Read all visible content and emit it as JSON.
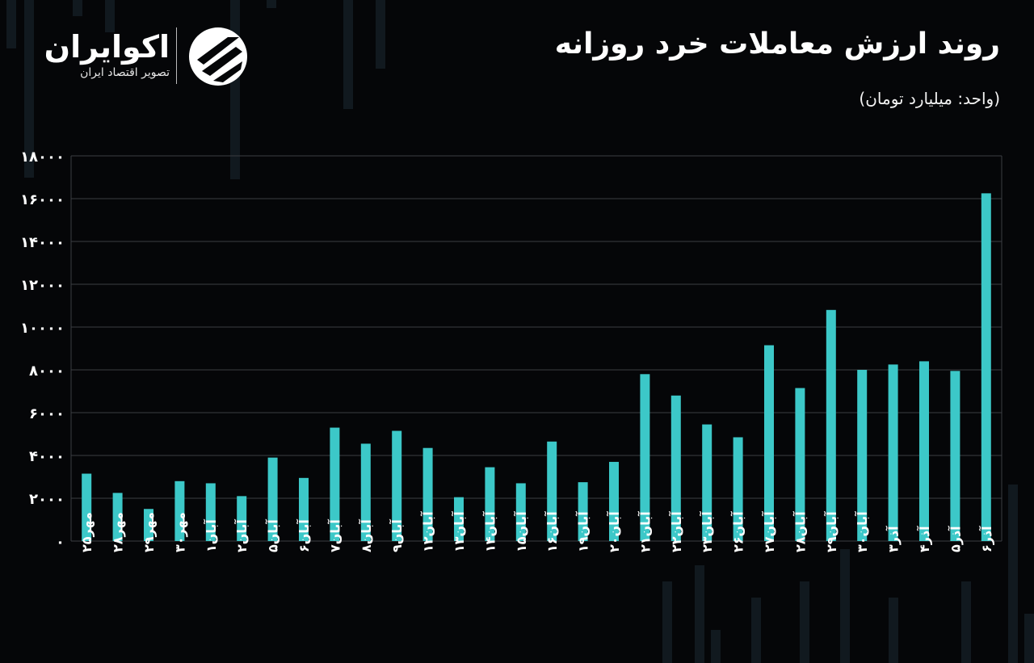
{
  "title": "روند ارزش معاملات خرد روزانه",
  "unit": "(واحد: میلیارد تومان)",
  "brand": {
    "name": "اکوایران",
    "tagline": "تصویر اقتصاد ایران"
  },
  "colors": {
    "bar": "#3cc8c8",
    "grid": "#3a3d42",
    "background": "#050608",
    "text": "#ffffff"
  },
  "chart_data": {
    "type": "bar",
    "title": "روند ارزش معاملات خرد روزانه",
    "ylabel": "(واحد: میلیارد تومان)",
    "ylim": [
      0,
      18000
    ],
    "yticks": [
      0,
      2000,
      4000,
      6000,
      8000,
      10000,
      12000,
      14000,
      16000,
      18000
    ],
    "ytick_labels": [
      "۰",
      "۲۰۰۰",
      "۴۰۰۰",
      "۶۰۰۰",
      "۸۰۰۰",
      "۱۰۰۰۰",
      "۱۲۰۰۰",
      "۱۴۰۰۰",
      "۱۶۰۰۰",
      "۱۸۰۰۰"
    ],
    "grid": true,
    "categories": [
      "مهر۲۵",
      "مهر۲۸",
      "مهر۲۹",
      "مهر۳۰",
      "آبان۱",
      "آبان۲",
      "آبان۵",
      "آبان۶",
      "آبان۷",
      "آبان۸",
      "آبان۹",
      "آبان۱۲",
      "آبان۱۳",
      "آبان۱۴",
      "آبان۱۵",
      "آبان۱۶",
      "آبان۱۹",
      "آبان۲۰",
      "آبان۲۱",
      "آبان۲۲",
      "آبان۲۳",
      "آبان۲۶",
      "آبان۲۷",
      "آبان۲۸",
      "آبان۲۹",
      "آبان۳۰",
      "آذر۳",
      "آذر۴",
      "آذر۵",
      "آذر۶"
    ],
    "values": [
      3150,
      2250,
      1500,
      2800,
      2700,
      2100,
      3900,
      2950,
      5300,
      4550,
      5150,
      4350,
      2050,
      3450,
      2700,
      4650,
      2750,
      3700,
      7800,
      6800,
      5450,
      4850,
      9150,
      7150,
      10800,
      8000,
      8250,
      8400,
      7950,
      16250
    ]
  }
}
